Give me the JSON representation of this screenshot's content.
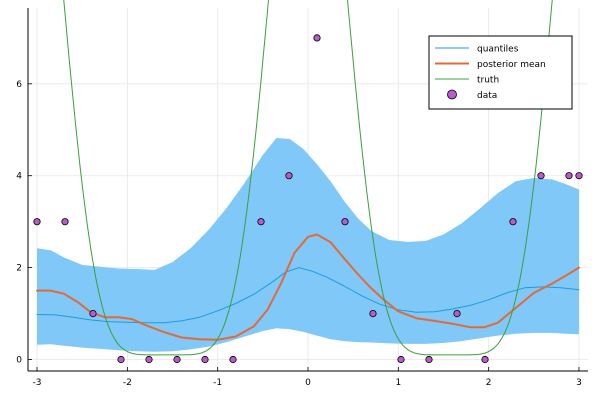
{
  "chart_data": {
    "type": "line",
    "title": "",
    "xlabel": "",
    "ylabel": "",
    "xlim": [
      -3.1,
      3.1
    ],
    "ylim": [
      -0.25,
      7.65
    ],
    "x_ticks": [
      -3,
      -2,
      -1,
      0,
      1,
      2,
      3
    ],
    "y_ticks": [
      0,
      2,
      4,
      6
    ],
    "grid": true,
    "legend_position": "top-right",
    "colors": {
      "band": "#7fc8f8",
      "quantiles": "#1e9cdc",
      "posterior_mean": "#e26a38",
      "truth": "#3aa03a",
      "data": "#b95bcc"
    },
    "legend": [
      "quantiles",
      "posterior mean",
      "truth",
      "data"
    ],
    "quantile_band": {
      "x": [
        -3.0,
        -2.85,
        -2.7,
        -2.5,
        -2.3,
        -2.1,
        -1.9,
        -1.7,
        -1.5,
        -1.3,
        -1.1,
        -0.9,
        -0.7,
        -0.5,
        -0.35,
        -0.2,
        -0.05,
        0.1,
        0.25,
        0.4,
        0.55,
        0.7,
        0.9,
        1.1,
        1.3,
        1.5,
        1.7,
        1.9,
        2.1,
        2.3,
        2.5,
        2.7,
        2.85,
        3.0
      ],
      "lower": [
        0.32,
        0.33,
        0.3,
        0.26,
        0.23,
        0.2,
        0.18,
        0.17,
        0.18,
        0.22,
        0.28,
        0.38,
        0.5,
        0.62,
        0.68,
        0.66,
        0.6,
        0.52,
        0.44,
        0.4,
        0.38,
        0.37,
        0.35,
        0.34,
        0.34,
        0.36,
        0.4,
        0.46,
        0.52,
        0.56,
        0.58,
        0.58,
        0.56,
        0.55
      ],
      "upper": [
        2.42,
        2.38,
        2.22,
        2.06,
        2.02,
        1.98,
        1.97,
        1.95,
        2.12,
        2.42,
        2.82,
        3.3,
        3.85,
        4.45,
        4.82,
        4.8,
        4.58,
        4.25,
        3.88,
        3.45,
        3.08,
        2.8,
        2.6,
        2.56,
        2.58,
        2.72,
        2.96,
        3.28,
        3.62,
        3.88,
        3.95,
        3.92,
        3.82,
        3.7
      ]
    },
    "series": [
      {
        "name": "quantiles",
        "x": [
          -3.0,
          -2.8,
          -2.6,
          -2.4,
          -2.2,
          -2.0,
          -1.8,
          -1.6,
          -1.4,
          -1.2,
          -1.0,
          -0.8,
          -0.6,
          -0.4,
          -0.25,
          -0.1,
          0.05,
          0.2,
          0.4,
          0.6,
          0.8,
          1.0,
          1.2,
          1.4,
          1.6,
          1.8,
          2.0,
          2.2,
          2.4,
          2.6,
          2.8,
          3.0
        ],
        "y": [
          0.98,
          0.97,
          0.92,
          0.86,
          0.82,
          0.81,
          0.8,
          0.8,
          0.84,
          0.92,
          1.06,
          1.22,
          1.42,
          1.68,
          1.9,
          2.0,
          1.92,
          1.8,
          1.6,
          1.38,
          1.2,
          1.08,
          1.03,
          1.04,
          1.1,
          1.18,
          1.3,
          1.45,
          1.56,
          1.58,
          1.56,
          1.52
        ]
      },
      {
        "name": "posterior mean",
        "x": [
          -3.0,
          -2.85,
          -2.7,
          -2.55,
          -2.4,
          -2.25,
          -2.1,
          -1.95,
          -1.8,
          -1.6,
          -1.4,
          -1.2,
          -1.0,
          -0.8,
          -0.6,
          -0.45,
          -0.3,
          -0.15,
          0.0,
          0.1,
          0.25,
          0.4,
          0.55,
          0.7,
          0.85,
          1.0,
          1.2,
          1.4,
          1.6,
          1.8,
          1.95,
          2.1,
          2.3,
          2.5,
          2.7,
          2.85,
          3.0
        ],
        "y": [
          1.5,
          1.5,
          1.43,
          1.25,
          1.02,
          0.92,
          0.92,
          0.88,
          0.75,
          0.6,
          0.48,
          0.44,
          0.43,
          0.5,
          0.72,
          1.08,
          1.65,
          2.32,
          2.67,
          2.72,
          2.55,
          2.2,
          1.86,
          1.55,
          1.28,
          1.05,
          0.9,
          0.84,
          0.78,
          0.7,
          0.7,
          0.8,
          1.12,
          1.45,
          1.65,
          1.82,
          2.0
        ]
      },
      {
        "name": "truth",
        "function": "0.1 + 7.3*cos(x)^6 + 6.7*cos(x-pi)^6",
        "domain": [
          -3.0,
          3.0
        ]
      }
    ],
    "data_points": {
      "name": "data",
      "x": [
        -3.0,
        -2.69,
        -2.38,
        -2.07,
        -1.76,
        -1.45,
        -1.14,
        -0.83,
        -0.52,
        -0.21,
        0.1,
        0.41,
        0.72,
        1.03,
        1.34,
        1.65,
        1.96,
        2.27,
        2.58,
        2.89,
        3.0
      ],
      "y": [
        3,
        3,
        1,
        0,
        0,
        0,
        0,
        0,
        3,
        4,
        7,
        3,
        1,
        0,
        0,
        1,
        0,
        3,
        4,
        4,
        4
      ]
    }
  }
}
